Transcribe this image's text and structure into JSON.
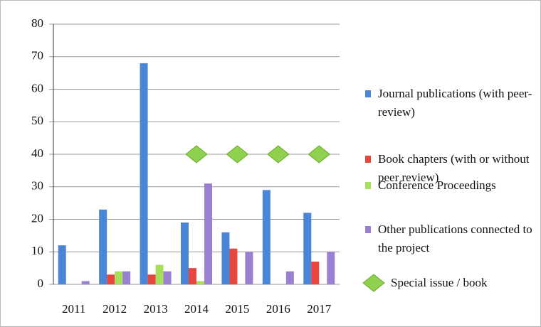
{
  "chart_data": {
    "type": "bar",
    "categories": [
      "2011",
      "2012",
      "2013",
      "2014",
      "2015",
      "2016",
      "2017"
    ],
    "series": [
      {
        "name": "Journal publications (with peer-review)",
        "color": "#4a86d8",
        "values": [
          12,
          23,
          68,
          19,
          16,
          29,
          22
        ]
      },
      {
        "name": "Book chapters (with or without peer review)",
        "color": "#e8463f",
        "values": [
          0,
          3,
          3,
          5,
          11,
          0,
          7
        ]
      },
      {
        "name": "Conference Proceedings",
        "color": "#a6e05a",
        "values": [
          0,
          4,
          6,
          1,
          0,
          0,
          0
        ]
      },
      {
        "name": "Other publications connected to the project",
        "color": "#9b7fd0",
        "values": [
          1,
          4,
          4,
          31,
          10,
          4,
          10
        ]
      },
      {
        "name": "Special issue / book",
        "color": "#8fd14f",
        "marker": "diamond",
        "values": [
          null,
          null,
          null,
          40,
          40,
          40,
          40
        ]
      }
    ],
    "ylim": [
      0,
      80
    ],
    "yticks": [
      0,
      10,
      20,
      30,
      40,
      50,
      60,
      70,
      80
    ],
    "grid": true
  }
}
